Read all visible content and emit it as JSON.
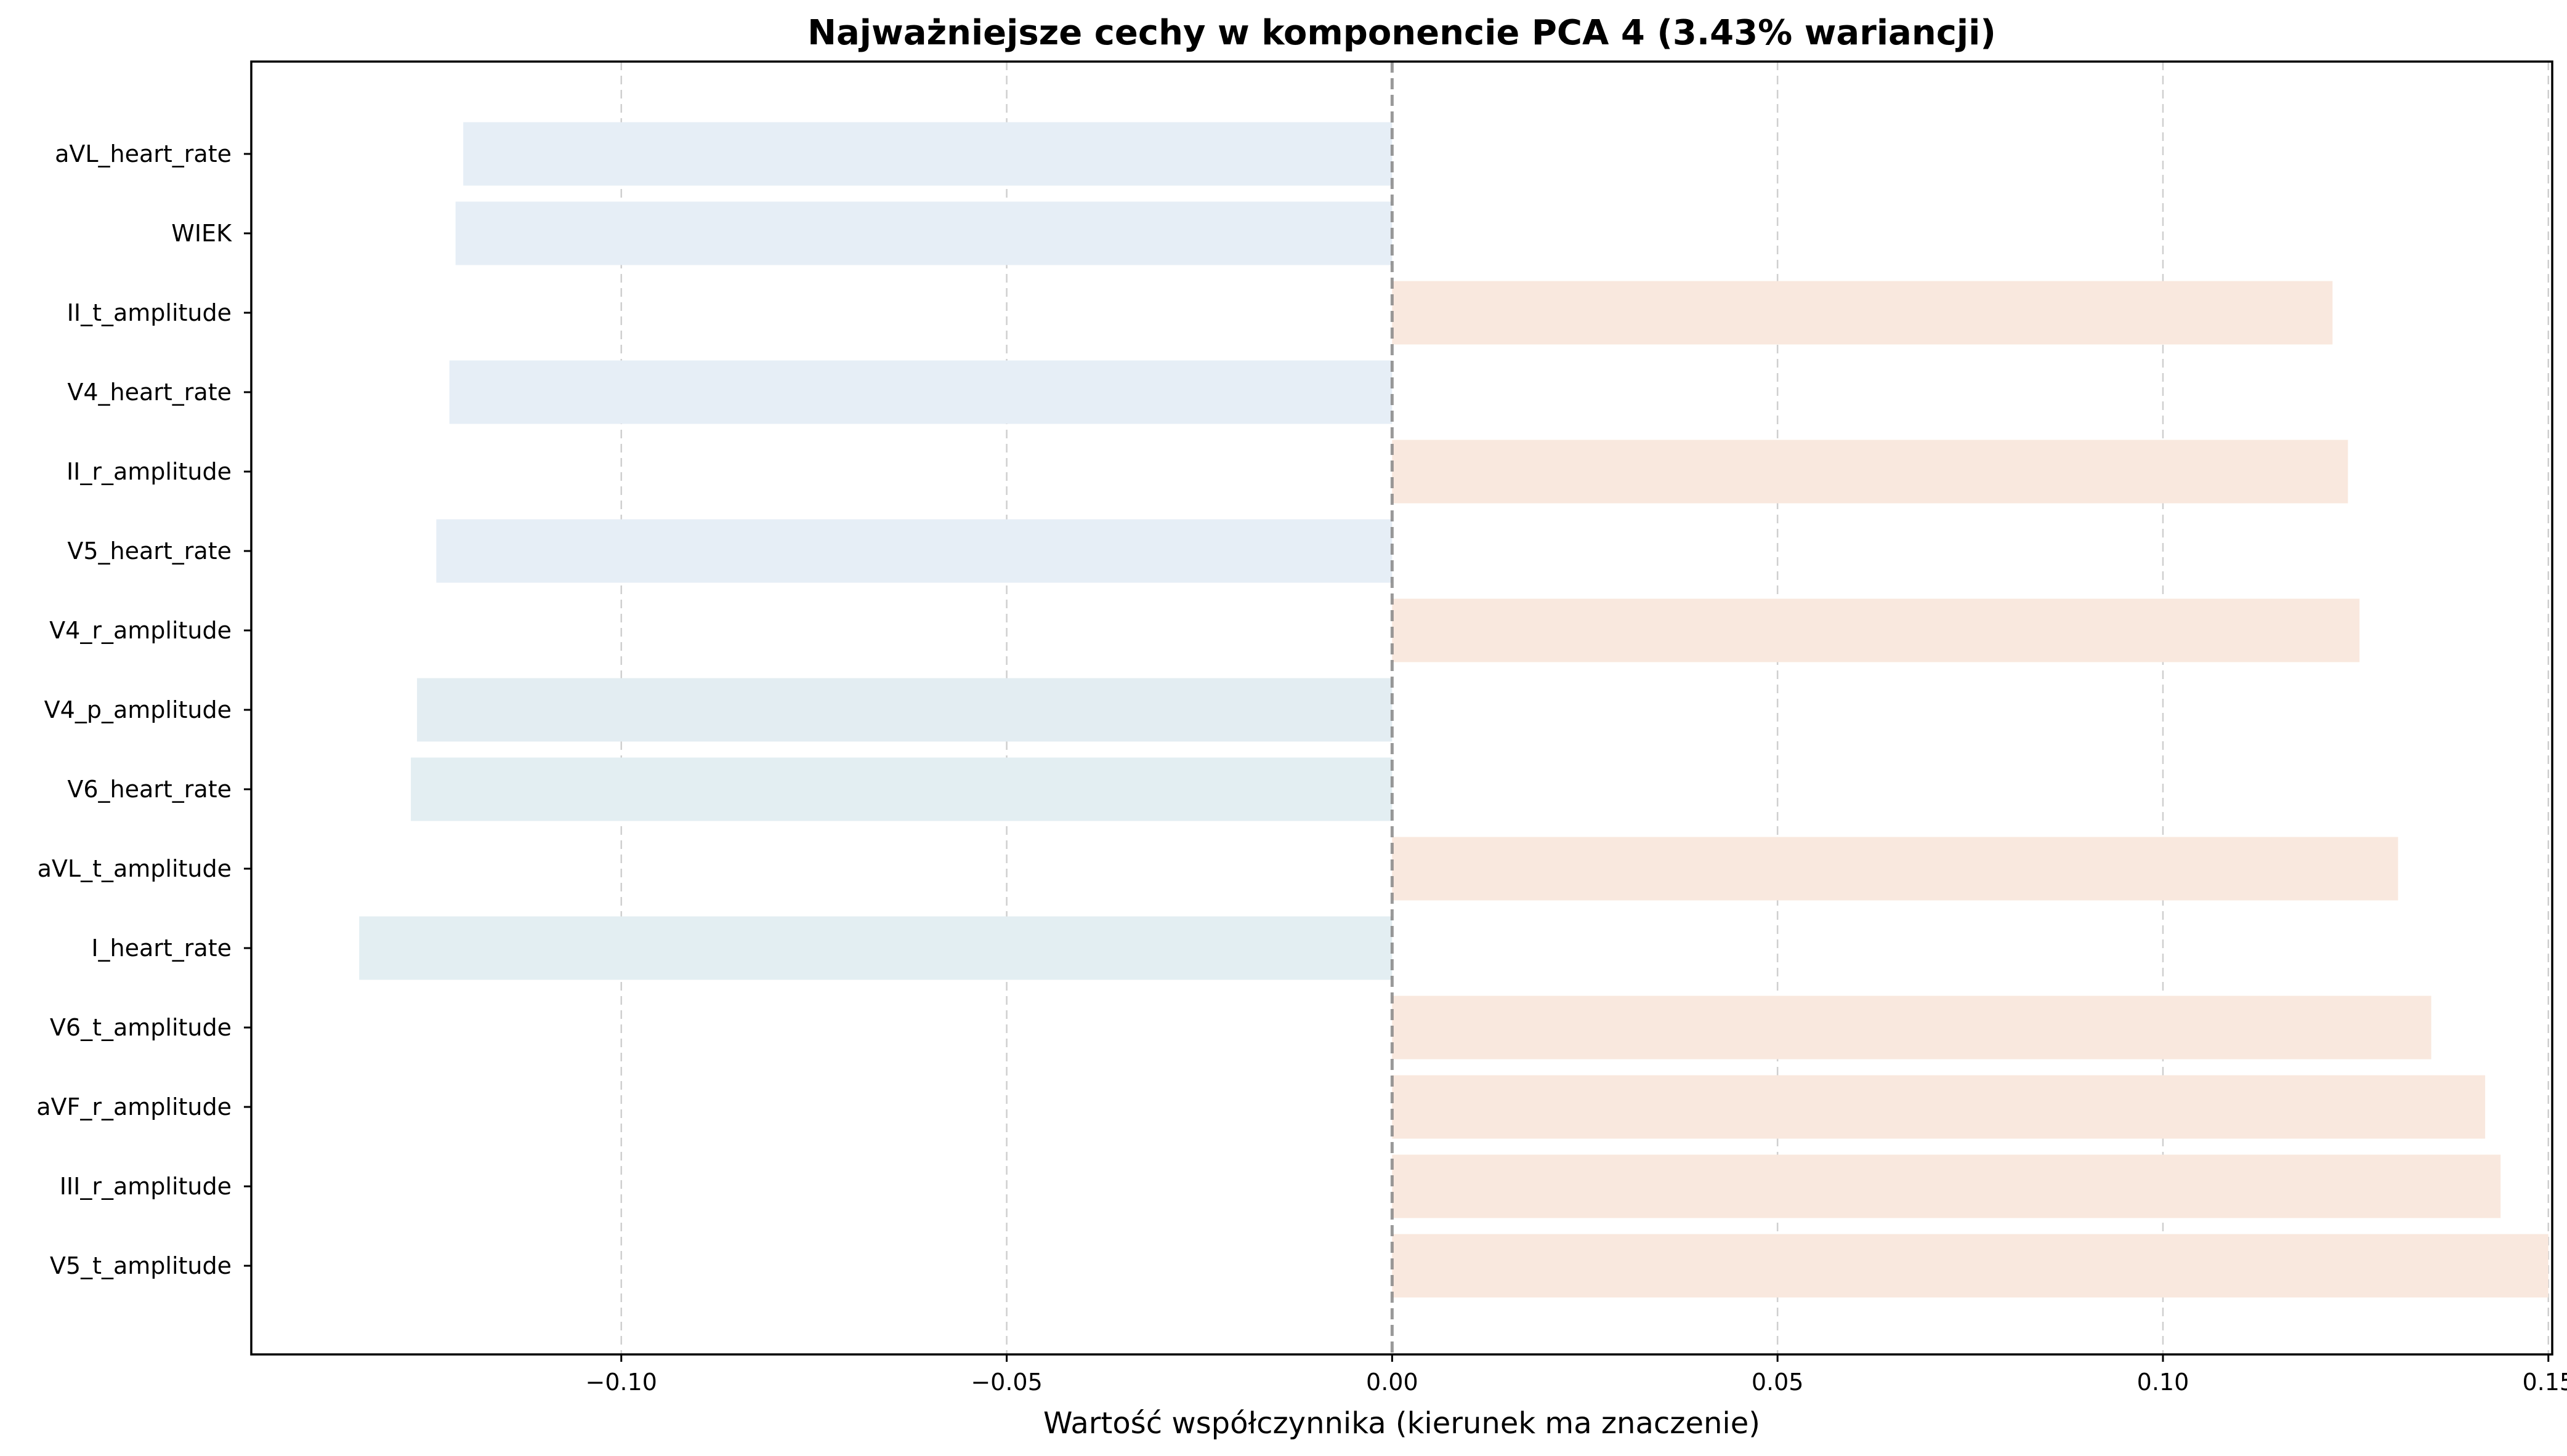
{
  "chart_data": {
    "type": "bar",
    "orientation": "horizontal",
    "title": "Najważniejsze cechy w komponencie PCA 4 (3.43% wariancji)",
    "xlabel": "Wartość współczynnika (kierunek ma znaczenie)",
    "ylabel": "",
    "xlim": [
      -0.148,
      0.1505
    ],
    "xticks": [
      -0.1,
      -0.05,
      0.0,
      0.05,
      0.1,
      0.15
    ],
    "xtick_labels": [
      "−0.10",
      "−0.05",
      "0.00",
      "0.05",
      "0.10",
      "0.15"
    ],
    "grid": "x-axis dashed",
    "zero_line": "dashed gray at 0.00",
    "categories": [
      "aVL_heart_rate",
      "WIEK",
      "II_t_amplitude",
      "V4_heart_rate",
      "II_r_amplitude",
      "V5_heart_rate",
      "V4_r_amplitude",
      "V4_p_amplitude",
      "V6_heart_rate",
      "aVL_t_amplitude",
      "I_heart_rate",
      "V6_t_amplitude",
      "aVF_r_amplitude",
      "III_r_amplitude",
      "V5_t_amplitude"
    ],
    "values": [
      -0.1205,
      -0.1215,
      0.122,
      -0.1223,
      0.124,
      -0.124,
      0.1255,
      -0.1265,
      -0.1273,
      0.1305,
      -0.134,
      0.1348,
      0.1418,
      0.1438,
      0.15
    ],
    "colors": {
      "negative": [
        "#e6eef6",
        "#e6eef6",
        null,
        "#e6eef6",
        null,
        "#e6eef6",
        null,
        "#e3edf2",
        "#e3eef2",
        null,
        "#e3eef2",
        null,
        null,
        null,
        null
      ],
      "positive": "#f9e8de"
    }
  }
}
